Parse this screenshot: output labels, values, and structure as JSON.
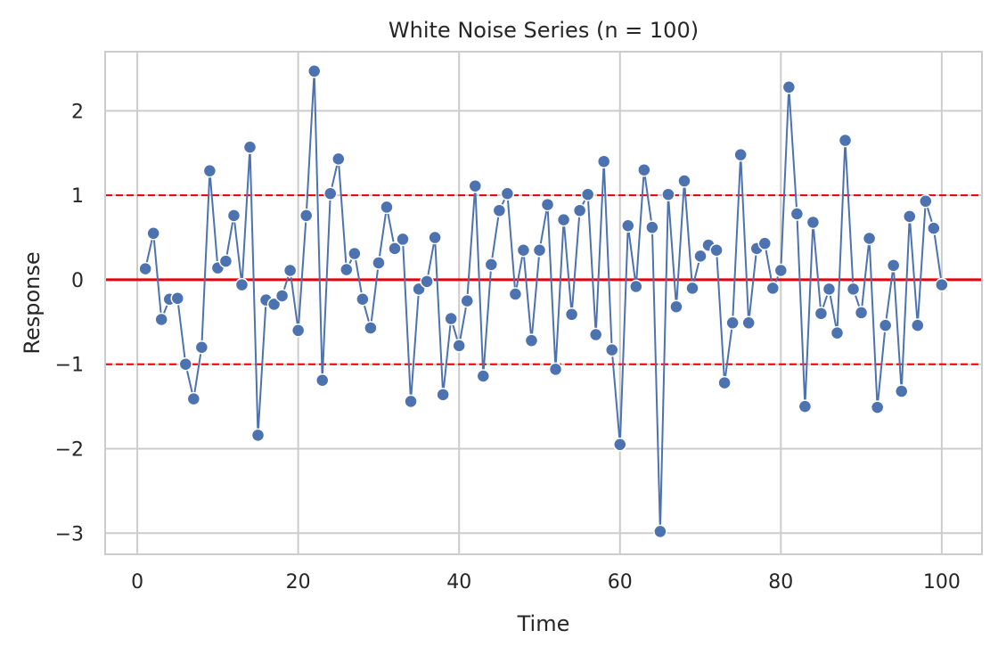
{
  "chart_data": {
    "type": "line",
    "title": "White Noise Series (n = 100)",
    "xlabel": "Time",
    "ylabel": "Response",
    "xlim": [
      -4,
      105
    ],
    "ylim": [
      -3.25,
      2.7
    ],
    "xticks": [
      0,
      20,
      40,
      60,
      80,
      100
    ],
    "yticks": [
      -3,
      -2,
      -1,
      0,
      1,
      2
    ],
    "xtick_labels": [
      "0",
      "20",
      "40",
      "60",
      "80",
      "100"
    ],
    "ytick_labels": [
      "−3",
      "−2",
      "−1",
      "0",
      "1",
      "2"
    ],
    "grid": true,
    "reference_lines": [
      {
        "y": 0,
        "style": "solid",
        "color": "#e8000b"
      },
      {
        "y": 1,
        "style": "dashed",
        "color": "#e8000b"
      },
      {
        "y": -1,
        "style": "dashed",
        "color": "#e8000b"
      }
    ],
    "series": [
      {
        "color": "#4c72b0",
        "marker": "circle",
        "x": [
          1,
          2,
          3,
          4,
          5,
          6,
          7,
          8,
          9,
          10,
          11,
          12,
          13,
          14,
          15,
          16,
          17,
          18,
          19,
          20,
          21,
          22,
          23,
          24,
          25,
          26,
          27,
          28,
          29,
          30,
          31,
          32,
          33,
          34,
          35,
          36,
          37,
          38,
          39,
          40,
          41,
          42,
          43,
          44,
          45,
          46,
          47,
          48,
          49,
          50,
          51,
          52,
          53,
          54,
          55,
          56,
          57,
          58,
          59,
          60,
          61,
          62,
          63,
          64,
          65,
          66,
          67,
          68,
          69,
          70,
          71,
          72,
          73,
          74,
          75,
          76,
          77,
          78,
          79,
          80,
          81,
          82,
          83,
          84,
          85,
          86,
          87,
          88,
          89,
          90,
          91,
          92,
          93,
          94,
          95,
          96,
          97,
          98,
          99,
          100
        ],
        "y": [
          0.13,
          0.55,
          -0.47,
          -0.23,
          -0.22,
          -1.0,
          -1.41,
          -0.8,
          1.29,
          0.14,
          0.22,
          0.76,
          -0.06,
          1.57,
          -1.84,
          -0.24,
          -0.29,
          -0.19,
          0.11,
          -0.6,
          0.76,
          2.47,
          -1.19,
          1.02,
          1.43,
          0.12,
          0.31,
          -0.23,
          -0.57,
          0.2,
          0.86,
          0.37,
          0.48,
          -1.44,
          -0.11,
          -0.02,
          0.5,
          -1.36,
          -0.46,
          -0.78,
          -0.25,
          1.11,
          -1.14,
          0.18,
          0.82,
          1.02,
          -0.17,
          0.35,
          -0.72,
          0.35,
          0.89,
          -1.06,
          0.71,
          -0.41,
          0.82,
          1.01,
          -0.65,
          1.4,
          -0.83,
          -1.95,
          0.64,
          -0.08,
          1.3,
          0.62,
          -2.98,
          1.01,
          -0.32,
          1.17,
          -0.1,
          0.28,
          0.41,
          0.35,
          -1.22,
          -0.51,
          1.48,
          -0.51,
          0.37,
          0.43,
          -0.1,
          0.11,
          2.28,
          0.78,
          -1.5,
          0.68,
          -0.4,
          -0.11,
          -0.63,
          1.65,
          -0.11,
          -0.39,
          0.49,
          -1.51,
          -0.54,
          0.17,
          -1.32,
          0.75,
          -0.54,
          0.93,
          0.61,
          -0.06
        ]
      }
    ]
  }
}
